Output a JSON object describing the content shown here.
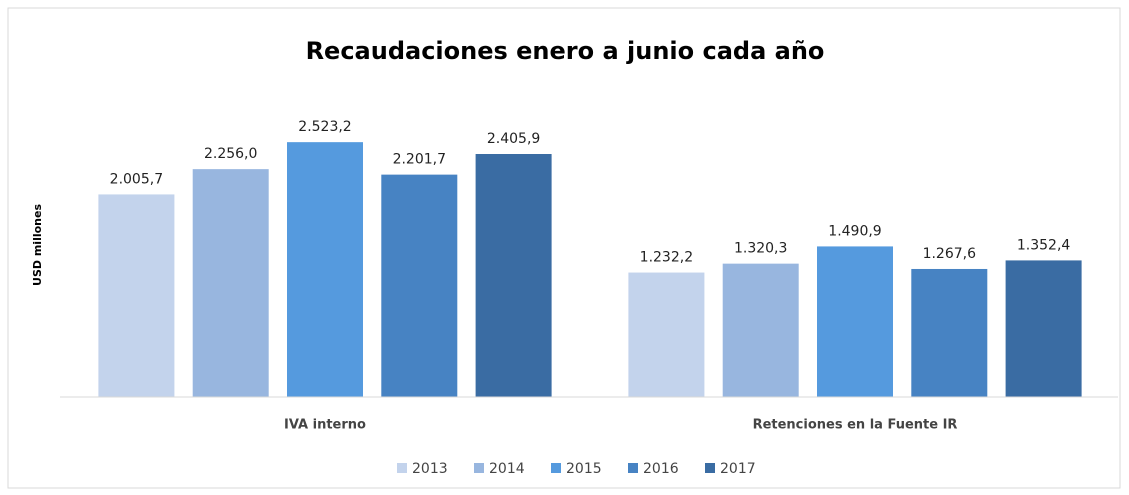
{
  "chart_data": {
    "type": "bar",
    "title": "Recaudaciones enero a junio cada año",
    "y_axis_label": "USD millones",
    "categories": [
      "IVA interno",
      "Retenciones en la Fuente IR"
    ],
    "series": [
      {
        "name": "2013",
        "color": "#c3d3ec",
        "values": [
          2005.7,
          1232.2
        ],
        "value_labels": [
          "2.005,7",
          "1.232,2"
        ]
      },
      {
        "name": "2014",
        "color": "#98b6df",
        "values": [
          2256.0,
          1320.3
        ],
        "value_labels": [
          "2.256,0",
          "1.320,3"
        ]
      },
      {
        "name": "2015",
        "color": "#559ade",
        "values": [
          2523.2,
          1490.9
        ],
        "value_labels": [
          "2.523,2",
          "1.490,9"
        ]
      },
      {
        "name": "2016",
        "color": "#4783c3",
        "values": [
          2201.7,
          1267.6
        ],
        "value_labels": [
          "2.201,7",
          "1.267,6"
        ]
      },
      {
        "name": "2017",
        "color": "#3a6ca3",
        "values": [
          2405.9,
          1352.4
        ],
        "value_labels": [
          "2.405,9",
          "1.352,4"
        ]
      }
    ],
    "ylim": [
      0,
      3000
    ],
    "legend": "bottom"
  }
}
